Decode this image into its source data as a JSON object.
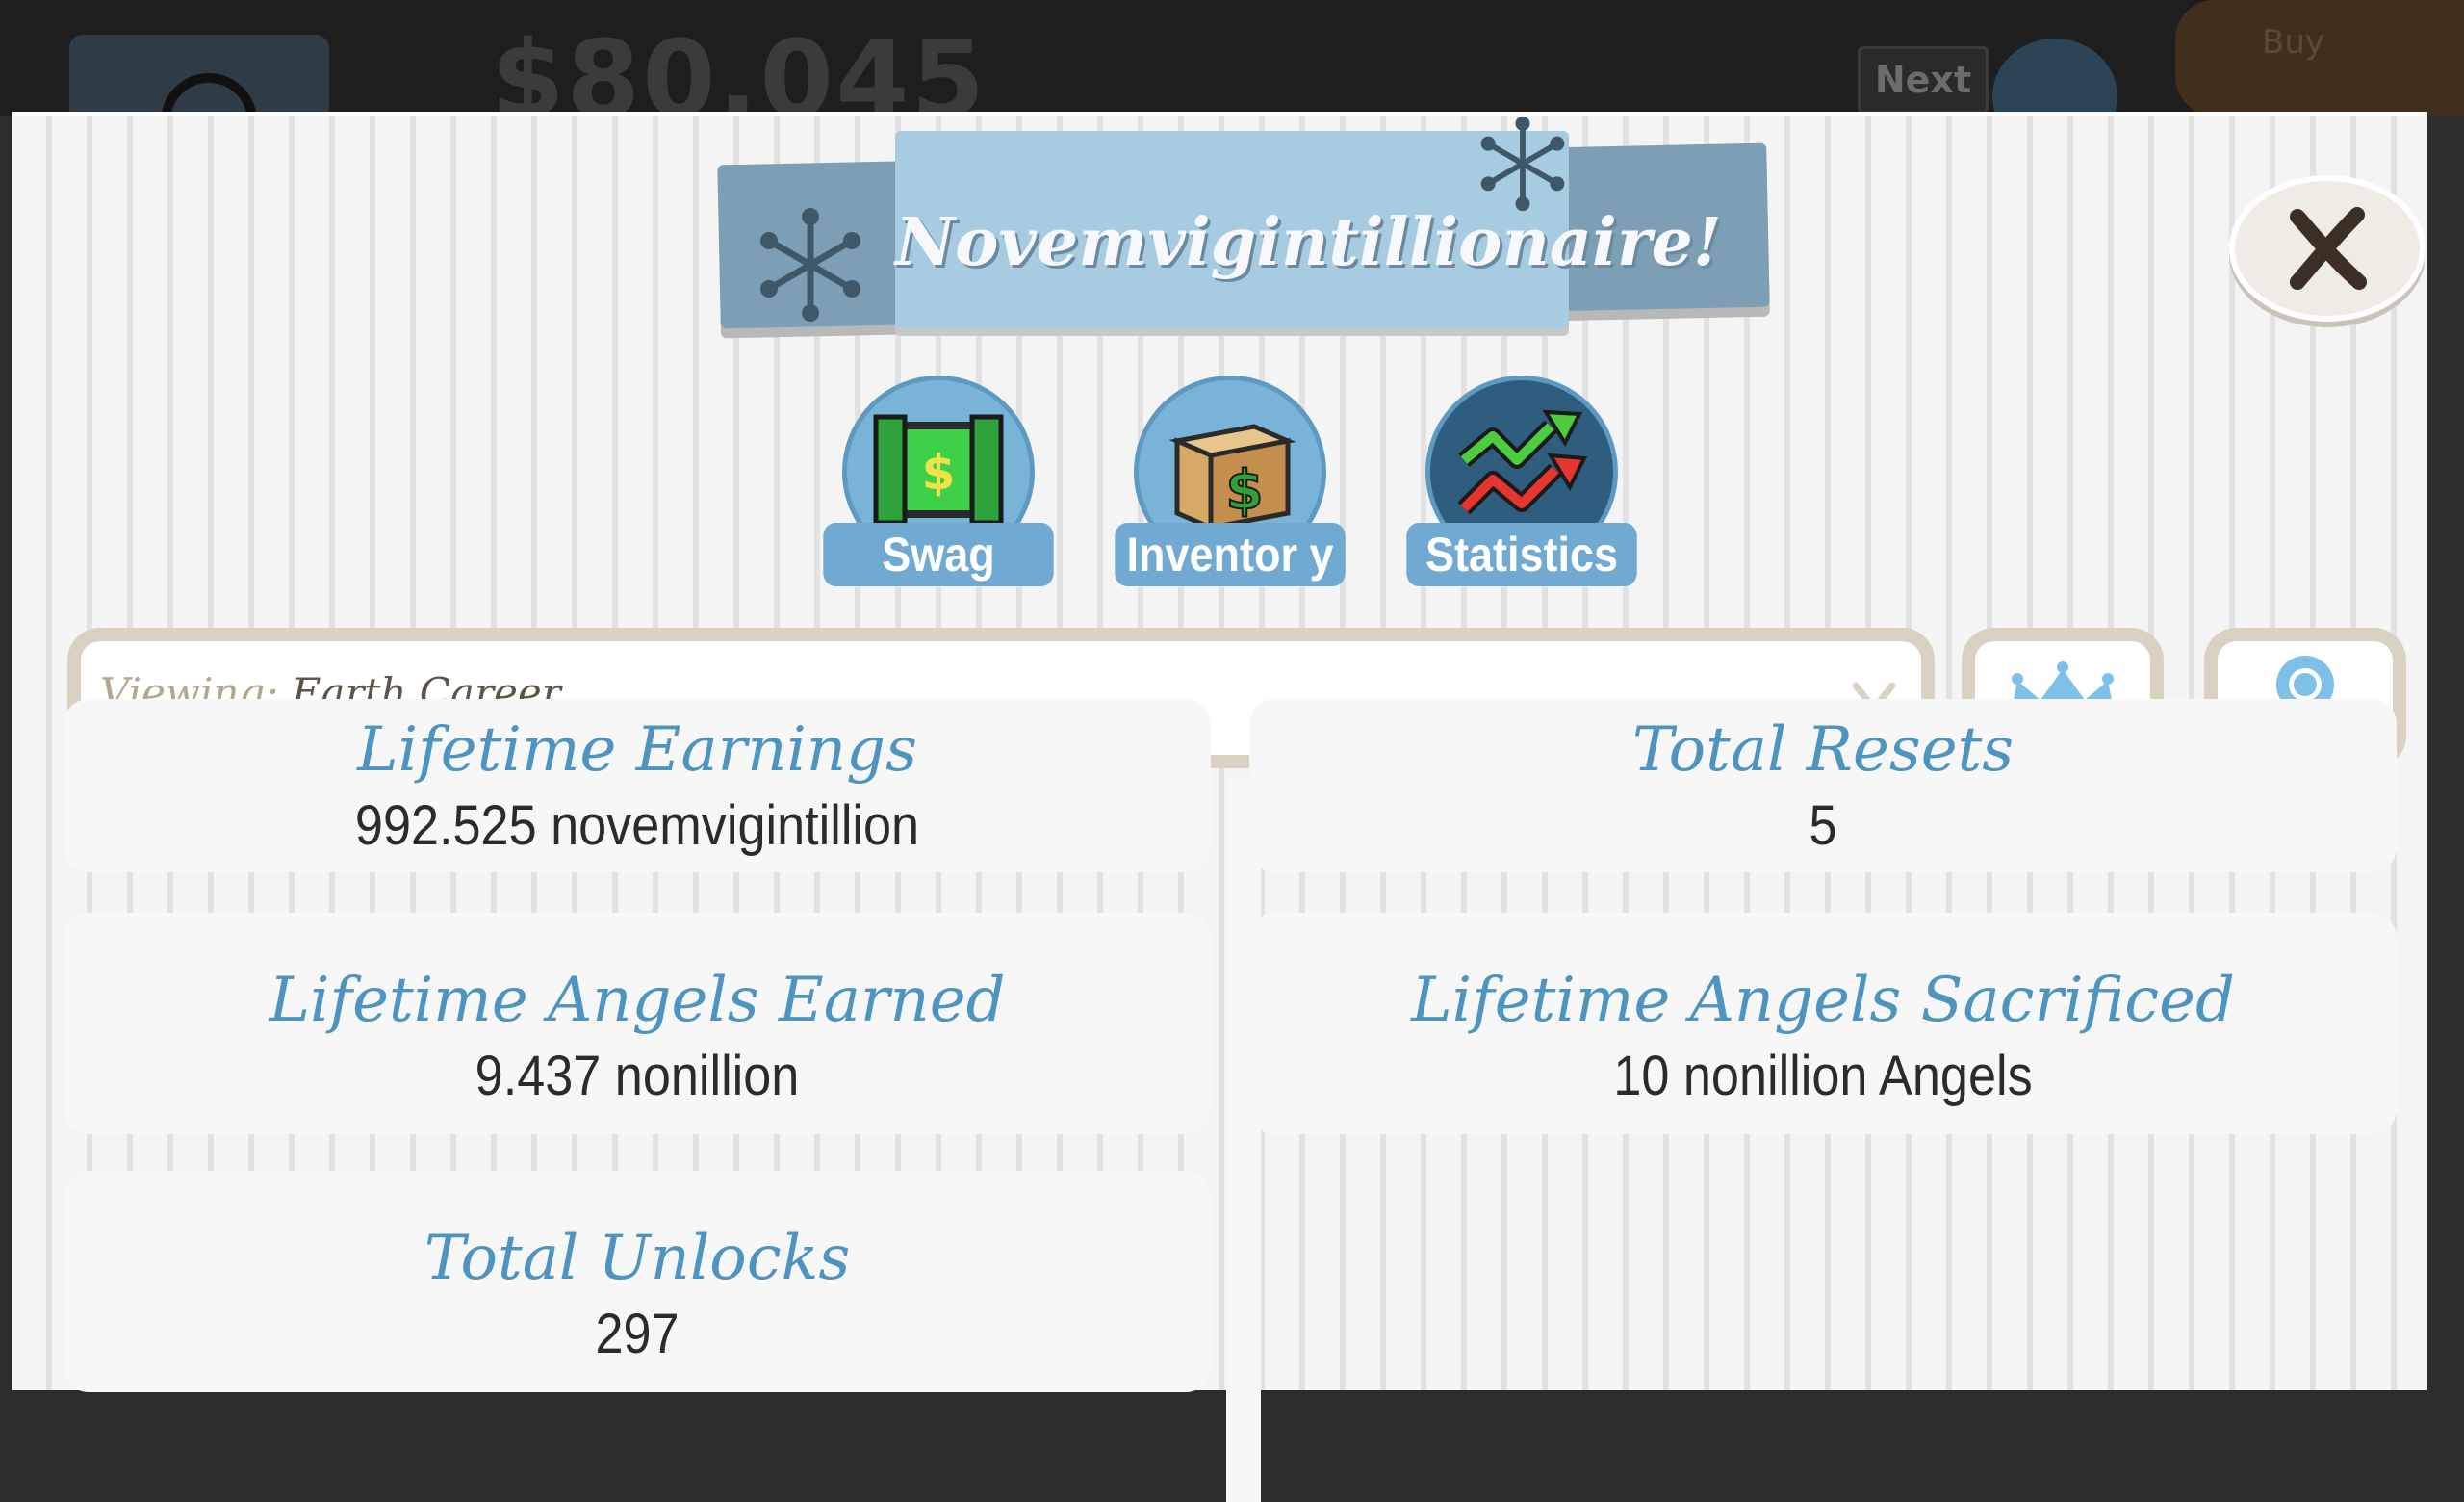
{
  "background": {
    "money_partial": "$80,045",
    "next_label": "Next",
    "buy_label": "Buy"
  },
  "header": {
    "title": "Novemvigintillionaire!"
  },
  "tabs": [
    {
      "label": "Swag",
      "icon": "money-doors-icon",
      "active": false
    },
    {
      "label": "Inventor y",
      "icon": "money-box-icon",
      "active": false
    },
    {
      "label": "Statistics",
      "icon": "trend-arrows-icon",
      "active": true
    }
  ],
  "filter": {
    "prefix": "Viewing:",
    "value": "Earth Career"
  },
  "buttons": {
    "crown": "crown-icon",
    "ribbon": "ribbon-award-icon",
    "close": "close-icon"
  },
  "stats": {
    "lifetime_earnings": {
      "title": "Lifetime Earnings",
      "value": "992.525 novemvigintillion"
    },
    "total_resets": {
      "title": "Total Resets",
      "value": "5"
    },
    "lifetime_angels_earned": {
      "title": "Lifetime Angels Earned",
      "value": "9.437 nonillion"
    },
    "lifetime_angels_sacrificed": {
      "title": "Lifetime Angels Sacrificed",
      "value": "10 nonillion Angels"
    },
    "total_unlocks": {
      "title": "Total Unlocks",
      "value": "297"
    }
  },
  "colors": {
    "accent_blue": "#4d94c1",
    "tab_blue": "#70aad3",
    "banner_blue": "#a7cbe0",
    "frame_beige": "#d9d2c3"
  }
}
